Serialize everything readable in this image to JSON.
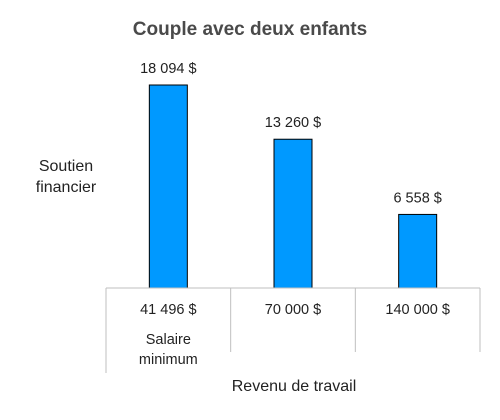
{
  "chart_data": {
    "type": "bar",
    "title": "Couple avec deux enfants",
    "ylabel": [
      "Soutien",
      "financier"
    ],
    "xlabel": "Revenu de travail",
    "categories": [
      "41 496  $",
      "70 000  $",
      "140 000  $"
    ],
    "category_sublabels": [
      [
        "Salaire",
        "minimum"
      ],
      [],
      []
    ],
    "values": [
      18094,
      13260,
      6558
    ],
    "value_labels": [
      "18 094  $",
      "13 260  $",
      "6 558  $"
    ],
    "ylim": [
      0,
      18094
    ],
    "bar_color": "#0099ff",
    "grid": false,
    "legend": "none"
  }
}
